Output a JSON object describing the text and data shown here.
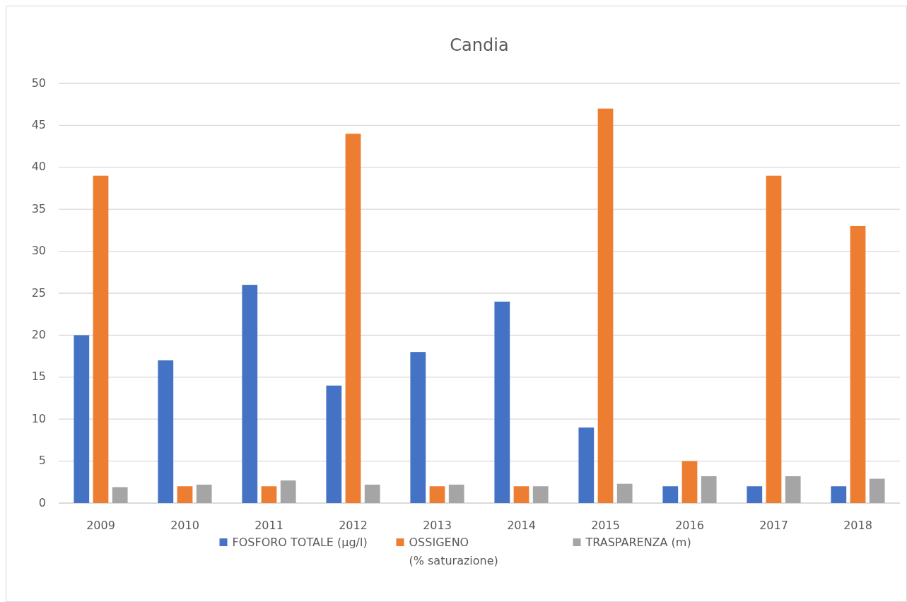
{
  "chart_data": {
    "type": "bar",
    "title": "Candia",
    "categories": [
      "2009",
      "2010",
      "2011",
      "2012",
      "2013",
      "2014",
      "2015",
      "2016",
      "2017",
      "2018"
    ],
    "series": [
      {
        "name": "FOSFORO TOTALE (µg/l)",
        "color": "#4472c4",
        "values": [
          20,
          17,
          26,
          14,
          18,
          24,
          9,
          2,
          2,
          2
        ]
      },
      {
        "name": "OSSIGENO\n(% saturazione)",
        "color": "#ed7d31",
        "values": [
          39,
          2,
          2,
          44,
          2,
          2,
          47,
          5,
          39,
          33
        ]
      },
      {
        "name": "TRASPARENZA (m)",
        "color": "#a5a5a5",
        "values": [
          1.9,
          2.2,
          2.7,
          2.2,
          2.2,
          2.0,
          2.3,
          3.2,
          3.2,
          2.9
        ]
      }
    ],
    "ylim": [
      0,
      50
    ],
    "yticks": [
      0,
      5,
      10,
      15,
      20,
      25,
      30,
      35,
      40,
      45,
      50
    ],
    "grid": "y",
    "legend": "bottom"
  }
}
